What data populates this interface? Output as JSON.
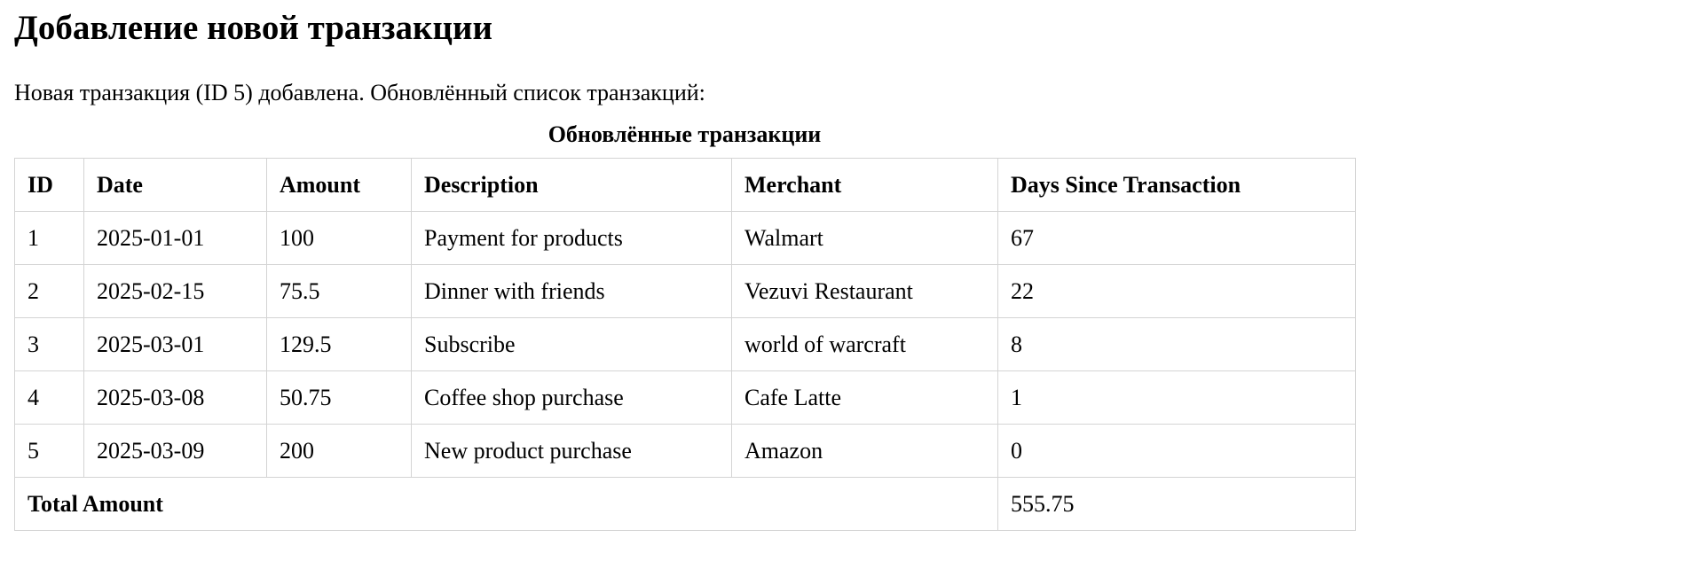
{
  "page": {
    "title": "Добавление новой транзакции",
    "message": "Новая транзакция (ID 5) добавлена. Обновлённый список транзакций:"
  },
  "table": {
    "caption": "Обновлённые транзакции",
    "headers": [
      "ID",
      "Date",
      "Amount",
      "Description",
      "Merchant",
      "Days Since Transaction"
    ],
    "rows": [
      [
        "1",
        "2025-01-01",
        "100",
        "Payment for products",
        "Walmart",
        "67"
      ],
      [
        "2",
        "2025-02-15",
        "75.5",
        "Dinner with friends",
        "Vezuvi Restaurant",
        "22"
      ],
      [
        "3",
        "2025-03-01",
        "129.5",
        "Subscribe",
        "world of warcraft",
        "8"
      ],
      [
        "4",
        "2025-03-08",
        "50.75",
        "Coffee shop purchase",
        "Cafe Latte",
        "1"
      ],
      [
        "5",
        "2025-03-09",
        "200",
        "New product purchase",
        "Amazon",
        "0"
      ]
    ],
    "total": {
      "label": "Total Amount",
      "value": "555.75"
    }
  }
}
